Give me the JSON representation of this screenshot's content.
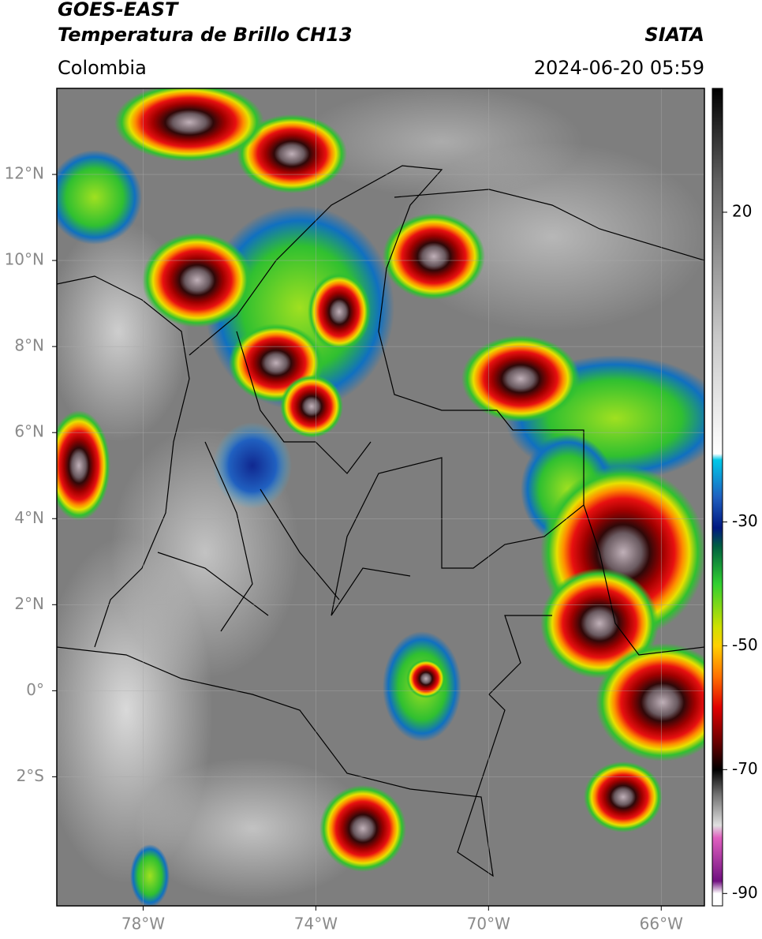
{
  "header": {
    "satellite": "GOES-EAST",
    "product": "Temperatura de Brillo CH13",
    "source": "SIATA",
    "region": "Colombia",
    "datetime": "2024-06-20 05:59"
  },
  "map": {
    "xlim": [
      -80,
      -65
    ],
    "ylim": [
      -5,
      14
    ],
    "xticks": [
      {
        "value": -78,
        "label": "78°W"
      },
      {
        "value": -74,
        "label": "74°W"
      },
      {
        "value": -70,
        "label": "70°W"
      },
      {
        "value": -66,
        "label": "66°W"
      }
    ],
    "yticks": [
      {
        "value": 12,
        "label": "12°N"
      },
      {
        "value": 10,
        "label": "10°N"
      },
      {
        "value": 8,
        "label": "8°N"
      },
      {
        "value": 6,
        "label": "6°N"
      },
      {
        "value": 4,
        "label": "4°N"
      },
      {
        "value": 2,
        "label": "2°N"
      },
      {
        "value": 0,
        "label": "0°"
      },
      {
        "value": -2,
        "label": "2°S"
      }
    ],
    "grid": true
  },
  "colorbar": {
    "lim": [
      -92,
      40
    ],
    "ticks": [
      20,
      -30,
      -50,
      -70,
      -90
    ],
    "stops": [
      {
        "value": 40,
        "color": "#000000"
      },
      {
        "value": 25,
        "color": "#606060"
      },
      {
        "value": 0,
        "color": "#c8c8c8"
      },
      {
        "value": -19,
        "color": "#ffffff"
      },
      {
        "value": -20,
        "color": "#00c8e8"
      },
      {
        "value": -26,
        "color": "#2060c0"
      },
      {
        "value": -31,
        "color": "#001880"
      },
      {
        "value": -34,
        "color": "#006040"
      },
      {
        "value": -40,
        "color": "#30d030"
      },
      {
        "value": -47,
        "color": "#d0e000"
      },
      {
        "value": -50,
        "color": "#ffd000"
      },
      {
        "value": -55,
        "color": "#ff7000"
      },
      {
        "value": -60,
        "color": "#e00000"
      },
      {
        "value": -66,
        "color": "#600000"
      },
      {
        "value": -70,
        "color": "#000000"
      },
      {
        "value": -74,
        "color": "#707070"
      },
      {
        "value": -79,
        "color": "#e0e0e0"
      },
      {
        "value": -81,
        "color": "#e060c0"
      },
      {
        "value": -88,
        "color": "#701080"
      },
      {
        "value": -90,
        "color": "#ffffff"
      }
    ]
  }
}
